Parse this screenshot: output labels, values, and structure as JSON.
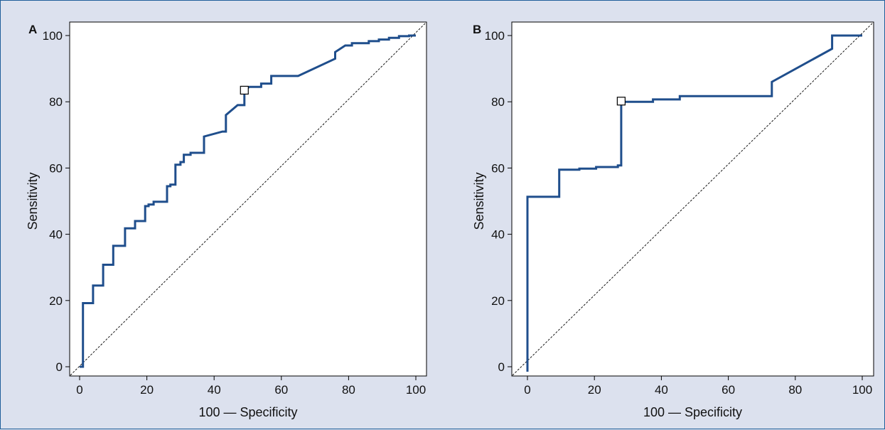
{
  "chart_data": [
    {
      "type": "line",
      "panel_label": "A",
      "xlabel": "100 — Specificity",
      "ylabel": "Sensitivity",
      "xlim": [
        0,
        100
      ],
      "ylim": [
        0,
        100
      ],
      "xticks": [
        "0",
        "20",
        "40",
        "60",
        "80",
        "100"
      ],
      "yticks": [
        "0",
        "20",
        "40",
        "60",
        "80",
        "100"
      ],
      "grid": false,
      "series": [
        {
          "color": "#1f4e8c",
          "points": [
            [
              0,
              0
            ],
            [
              1,
              0
            ],
            [
              1,
              19.2
            ],
            [
              4,
              19.2
            ],
            [
              4,
              24.5
            ],
            [
              7,
              24.5
            ],
            [
              7,
              30.8
            ],
            [
              10,
              30.8
            ],
            [
              10,
              36.5
            ],
            [
              13.5,
              36.5
            ],
            [
              13.5,
              41.8
            ],
            [
              16.5,
              41.8
            ],
            [
              16.5,
              44
            ],
            [
              19.5,
              44
            ],
            [
              19.5,
              48.5
            ],
            [
              20.5,
              48.5
            ],
            [
              20.5,
              49
            ],
            [
              22,
              49
            ],
            [
              22,
              49.8
            ],
            [
              26,
              49.8
            ],
            [
              26,
              54.5
            ],
            [
              27,
              54.5
            ],
            [
              27,
              55
            ],
            [
              28.5,
              55
            ],
            [
              28.5,
              61
            ],
            [
              30,
              61
            ],
            [
              30,
              61.8
            ],
            [
              31,
              61.8
            ],
            [
              31,
              64
            ],
            [
              33,
              64
            ],
            [
              33,
              64.6
            ],
            [
              37,
              64.6
            ],
            [
              37,
              69.5
            ],
            [
              42.5,
              71
            ],
            [
              43.5,
              71
            ],
            [
              43.5,
              76
            ],
            [
              47,
              79
            ],
            [
              49,
              79
            ],
            [
              49,
              83.5
            ],
            [
              50.5,
              84.5
            ],
            [
              54,
              84.5
            ],
            [
              54,
              85.5
            ],
            [
              57,
              85.5
            ],
            [
              57,
              87.8
            ],
            [
              65,
              87.8
            ],
            [
              76,
              93
            ],
            [
              76,
              95
            ],
            [
              79,
              97
            ],
            [
              81,
              97
            ],
            [
              81,
              97.7
            ],
            [
              86,
              97.7
            ],
            [
              86,
              98.3
            ],
            [
              89,
              98.3
            ],
            [
              89,
              98.8
            ],
            [
              92,
              98.8
            ],
            [
              92,
              99.3
            ],
            [
              95,
              99.3
            ],
            [
              95,
              99.8
            ],
            [
              98,
              99.8
            ],
            [
              98,
              100
            ],
            [
              100,
              100
            ]
          ]
        }
      ],
      "reference_line": [
        [
          0,
          0
        ],
        [
          100,
          100
        ]
      ],
      "marker": [
        49,
        83.5
      ]
    },
    {
      "type": "line",
      "panel_label": "B",
      "xlabel": "100 — Specificity",
      "ylabel": "Sensitivity",
      "xlim": [
        0,
        100
      ],
      "ylim": [
        0,
        100
      ],
      "xticks": [
        "0",
        "20",
        "40",
        "60",
        "80",
        "100"
      ],
      "yticks": [
        "0",
        "20",
        "40",
        "60",
        "80",
        "100"
      ],
      "grid": false,
      "series": [
        {
          "color": "#1f4e8c",
          "points": [
            [
              0,
              -1.5
            ],
            [
              0,
              51.3
            ],
            [
              9.5,
              51.3
            ],
            [
              9.5,
              59.5
            ],
            [
              15.5,
              59.5
            ],
            [
              15.5,
              59.8
            ],
            [
              20.5,
              59.8
            ],
            [
              20.5,
              60.3
            ],
            [
              27,
              60.3
            ],
            [
              27,
              60.8
            ],
            [
              28,
              60.8
            ],
            [
              28,
              80
            ],
            [
              37.5,
              80
            ],
            [
              37.5,
              80.7
            ],
            [
              45.5,
              80.7
            ],
            [
              45.5,
              81.7
            ],
            [
              73,
              81.7
            ],
            [
              73,
              86
            ],
            [
              91,
              96
            ],
            [
              91,
              100
            ],
            [
              100,
              100
            ]
          ]
        }
      ],
      "reference_line": [
        [
          0,
          0
        ],
        [
          100,
          100
        ]
      ],
      "marker": [
        28,
        80.2
      ]
    }
  ]
}
